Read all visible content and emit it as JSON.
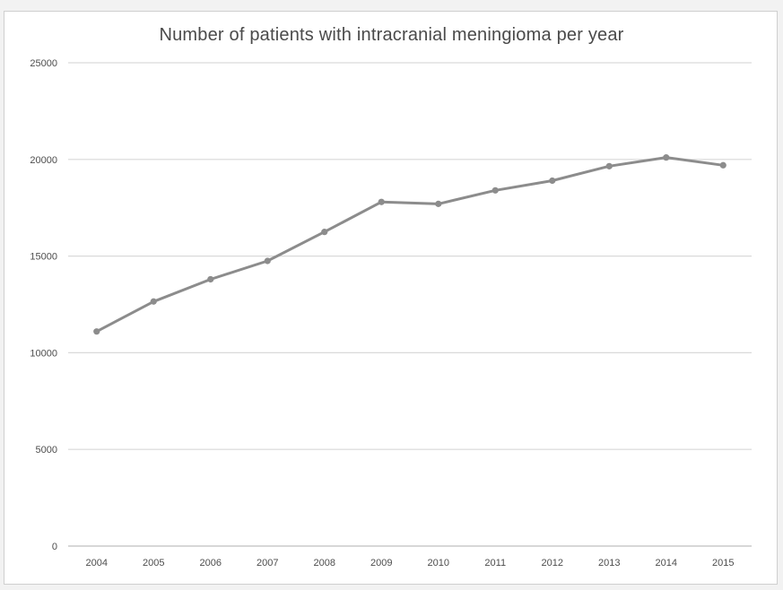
{
  "chart_data": {
    "type": "line",
    "title": "Number of patients with intracranial meningioma per year",
    "xlabel": "",
    "ylabel": "",
    "categories": [
      "2004",
      "2005",
      "2006",
      "2007",
      "2008",
      "2009",
      "2010",
      "2011",
      "2012",
      "2013",
      "2014",
      "2015"
    ],
    "series": [
      {
        "values": [
          11100,
          12650,
          13800,
          14750,
          16250,
          17800,
          17700,
          18400,
          18900,
          19650,
          20100,
          19700
        ]
      }
    ],
    "ylim": [
      0,
      25000
    ],
    "yticks": [
      "0",
      "5000",
      "10000",
      "15000",
      "20000",
      "25000"
    ],
    "grid": true,
    "legend": "none",
    "line_color": "#8c8c8c",
    "grid_color": "#d9d9d9"
  }
}
